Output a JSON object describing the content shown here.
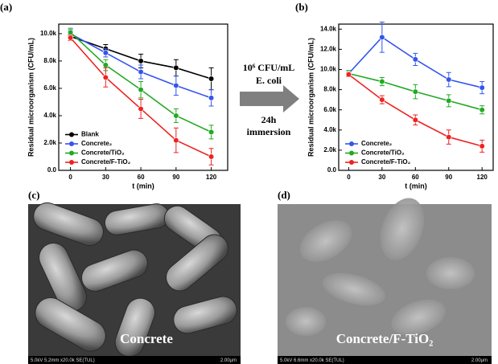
{
  "chart_data": [
    {
      "type": "line",
      "label": "(a)",
      "y_label": "Residual microorganism (CFU/mL)",
      "x_label": "t (min)",
      "x": [
        0,
        30,
        60,
        90,
        120
      ],
      "xlim": [
        -10,
        134
      ],
      "xticks": [
        0,
        30,
        60,
        90,
        120
      ],
      "ylim": [
        0,
        10700
      ],
      "yticks": [
        {
          "value": 0,
          "label": "0.0"
        },
        {
          "value": 2000,
          "label": "2.0k"
        },
        {
          "value": 4000,
          "label": "4.0k"
        },
        {
          "value": 6000,
          "label": "6.0k"
        },
        {
          "value": 8000,
          "label": "8.0k"
        },
        {
          "value": 10000,
          "label": "10.0k"
        }
      ],
      "legend": "lower left",
      "series": [
        {
          "name": "Blank",
          "color": "#000000",
          "values": [
            9800,
            8900,
            8000,
            7500,
            6700
          ],
          "errors": [
            200,
            300,
            500,
            600,
            800
          ]
        },
        {
          "name": "Concrete₂",
          "color": "#3355ee",
          "values": [
            10000,
            8600,
            7200,
            6200,
            5300
          ],
          "errors": [
            300,
            300,
            500,
            700,
            600
          ]
        },
        {
          "name": "Concrete/TiO₂",
          "color": "#22aa22",
          "values": [
            10100,
            7700,
            5900,
            4000,
            2800
          ],
          "errors": [
            300,
            400,
            600,
            500,
            500
          ]
        },
        {
          "name": "Concrete/F-TiO₂",
          "color": "#ee2222",
          "values": [
            9700,
            6800,
            4500,
            2200,
            1000
          ],
          "errors": [
            200,
            700,
            700,
            900,
            600
          ]
        }
      ]
    },
    {
      "type": "line",
      "label": "(b)",
      "y_label": "Residual microorganism (CFU/mL)",
      "x_label": "t (min)",
      "x": [
        0,
        30,
        60,
        90,
        120
      ],
      "xlim": [
        -9,
        130
      ],
      "xticks": [
        0,
        30,
        60,
        90,
        120
      ],
      "ylim": [
        0,
        14500
      ],
      "yticks": [
        {
          "value": 0,
          "label": "0.0"
        },
        {
          "value": 2000,
          "label": "2.0k"
        },
        {
          "value": 4000,
          "label": "4.0k"
        },
        {
          "value": 6000,
          "label": "6.0k"
        },
        {
          "value": 8000,
          "label": "8.0k"
        },
        {
          "value": 10000,
          "label": "10.0k"
        },
        {
          "value": 12000,
          "label": "12.0k"
        },
        {
          "value": 14000,
          "label": "14.0k"
        }
      ],
      "legend": "lower left",
      "series": [
        {
          "name": "Concrete₂",
          "color": "#3355ee",
          "values": [
            9600,
            13200,
            11000,
            9000,
            8200
          ],
          "errors": [
            300,
            1500,
            600,
            700,
            600
          ]
        },
        {
          "name": "Concrete/TiO₂",
          "color": "#22aa22",
          "values": [
            9600,
            8800,
            7800,
            6900,
            6000
          ],
          "errors": [
            300,
            400,
            700,
            600,
            400
          ]
        },
        {
          "name": "Concrete/F-TiO₂",
          "color": "#ee2222",
          "values": [
            9500,
            7000,
            5000,
            3300,
            2400
          ],
          "errors": [
            200,
            400,
            500,
            700,
            600
          ]
        }
      ]
    }
  ],
  "arrow_text": [
    "10⁶ CFU/mL",
    "E. coli",
    "24h",
    "immersion"
  ],
  "images": [
    {
      "label": "(c)",
      "caption": "Concrete",
      "info": "5.0kV 5.2mm x20.0k SE(TUL)",
      "scale": "2.00µm"
    },
    {
      "label": "(d)",
      "caption": "Concrete/F-TiO₂",
      "info": "5.0kV 6.6mm x20.0k SE(TUL)",
      "scale": "2.00µm"
    }
  ]
}
